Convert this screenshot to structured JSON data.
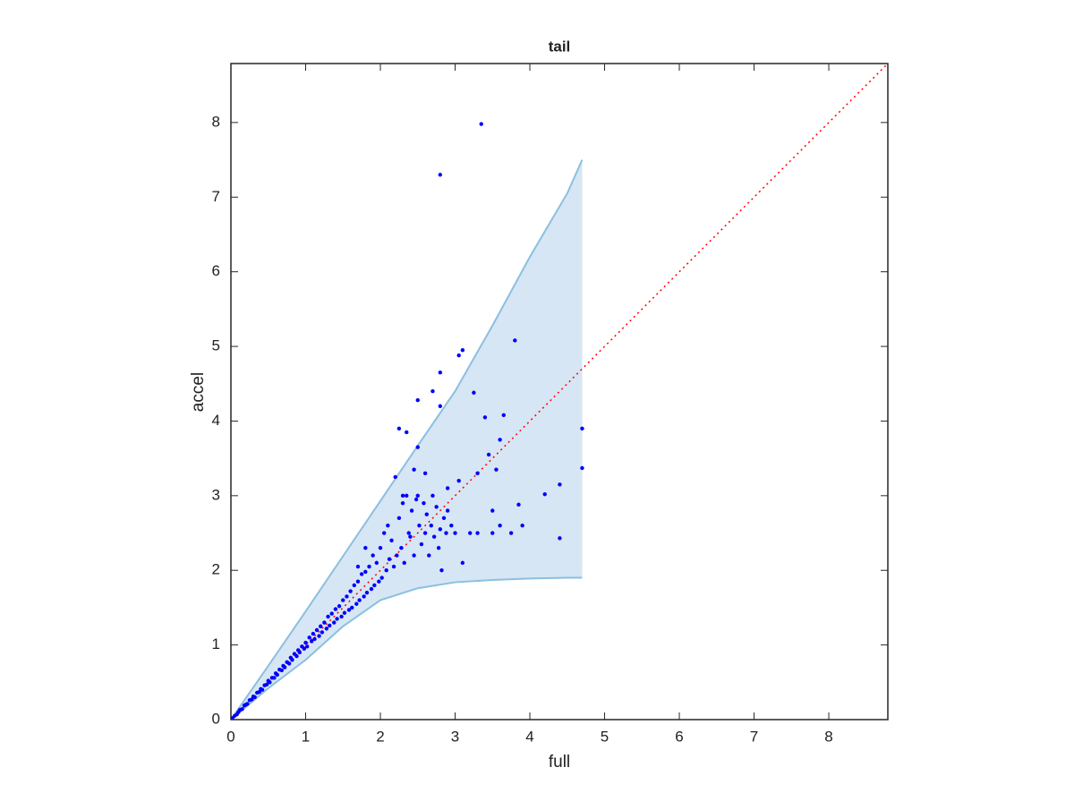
{
  "chart_data": {
    "type": "scatter",
    "title": "tail",
    "x_label": "full",
    "y_label": "accel",
    "xlim": [
      0,
      8.79
    ],
    "ylim": [
      0,
      8.79
    ],
    "xticks": [
      0,
      1,
      2,
      3,
      4,
      5,
      6,
      7,
      8
    ],
    "yticks": [
      0,
      1,
      2,
      3,
      4,
      5,
      6,
      7,
      8
    ],
    "color": "#0000ff",
    "x": [
      0.02,
      0.05,
      0.08,
      0.1,
      0.12,
      0.15,
      0.18,
      0.2,
      0.22,
      0.25,
      0.28,
      0.3,
      0.32,
      0.35,
      0.38,
      0.4,
      0.42,
      0.45,
      0.48,
      0.5,
      0.52,
      0.55,
      0.58,
      0.6,
      0.62,
      0.65,
      0.68,
      0.7,
      0.72,
      0.75,
      0.78,
      0.8,
      0.82,
      0.85,
      0.88,
      0.9,
      0.92,
      0.95,
      0.98,
      1.0,
      1.02,
      1.05,
      1.08,
      1.1,
      1.12,
      1.15,
      1.18,
      1.2,
      1.22,
      1.25,
      1.28,
      1.3,
      1.32,
      1.35,
      1.38,
      1.4,
      1.42,
      1.45,
      1.48,
      1.5,
      1.52,
      1.55,
      1.58,
      1.6,
      1.62,
      1.65,
      1.68,
      1.7,
      1.72,
      1.75,
      1.78,
      1.8,
      1.82,
      1.85,
      1.88,
      1.9,
      1.92,
      1.95,
      1.98,
      1.7,
      1.8,
      2.0,
      2.02,
      2.05,
      2.08,
      2.1,
      2.12,
      2.15,
      2.18,
      2.2,
      2.22,
      2.25,
      2.28,
      2.3,
      2.32,
      2.35,
      2.38,
      2.4,
      2.42,
      2.45,
      2.48,
      2.5,
      2.52,
      2.55,
      2.58,
      2.6,
      2.62,
      2.65,
      2.68,
      2.7,
      2.72,
      2.75,
      2.78,
      2.8,
      2.82,
      2.85,
      2.88,
      2.9,
      2.95,
      3.0,
      3.05,
      2.3,
      2.45,
      2.6,
      2.9,
      3.35,
      2.8,
      3.8,
      3.1,
      3.05,
      2.8,
      2.7,
      2.5,
      2.8,
      3.25,
      3.4,
      3.65,
      2.35,
      2.25,
      2.5,
      4.7,
      4.7,
      4.4,
      4.2,
      4.4,
      3.85,
      3.9,
      3.75,
      3.5,
      3.6,
      3.55,
      3.3,
      3.45,
      3.1,
      3.2,
      3.3,
      3.6,
      3.5
    ],
    "y": [
      0.02,
      0.05,
      0.07,
      0.1,
      0.13,
      0.14,
      0.19,
      0.2,
      0.21,
      0.26,
      0.27,
      0.31,
      0.3,
      0.36,
      0.37,
      0.41,
      0.4,
      0.46,
      0.47,
      0.52,
      0.5,
      0.56,
      0.56,
      0.62,
      0.6,
      0.67,
      0.66,
      0.72,
      0.7,
      0.77,
      0.75,
      0.83,
      0.8,
      0.88,
      0.85,
      0.93,
      0.9,
      0.98,
      0.95,
      1.03,
      0.98,
      1.1,
      1.05,
      1.15,
      1.08,
      1.2,
      1.12,
      1.25,
      1.17,
      1.3,
      1.22,
      1.38,
      1.26,
      1.42,
      1.3,
      1.48,
      1.35,
      1.52,
      1.38,
      1.6,
      1.43,
      1.65,
      1.47,
      1.72,
      1.5,
      1.8,
      1.55,
      1.85,
      1.6,
      1.95,
      1.65,
      1.98,
      1.7,
      2.05,
      1.75,
      2.2,
      1.8,
      2.1,
      1.85,
      2.05,
      2.3,
      2.3,
      1.9,
      2.5,
      2.0,
      2.6,
      2.15,
      2.4,
      2.05,
      3.25,
      2.2,
      2.7,
      2.3,
      2.9,
      2.1,
      3.0,
      2.5,
      2.45,
      2.8,
      2.2,
      2.95,
      3.0,
      2.6,
      2.35,
      2.9,
      2.5,
      2.75,
      2.2,
      2.6,
      3.0,
      2.45,
      2.85,
      2.3,
      2.55,
      2.0,
      2.7,
      2.5,
      2.8,
      2.6,
      2.5,
      3.2,
      3.0,
      3.35,
      3.3,
      3.1,
      7.98,
      7.3,
      5.08,
      4.95,
      4.88,
      4.65,
      4.4,
      4.28,
      4.2,
      4.38,
      4.05,
      4.08,
      3.85,
      3.9,
      3.65,
      3.9,
      3.37,
      3.15,
      3.02,
      2.43,
      2.88,
      2.6,
      2.5,
      2.5,
      3.75,
      3.35,
      3.3,
      3.55,
      2.1,
      2.5,
      2.5,
      2.6,
      2.8
    ],
    "band": {
      "color": "#d6e6f4",
      "edge_color": "#8cbfe0",
      "x": [
        0,
        0.5,
        1,
        1.5,
        2,
        2.5,
        3,
        3.5,
        4,
        4.5,
        4.7
      ],
      "upper": [
        0,
        0.72,
        1.45,
        2.19,
        2.93,
        3.67,
        4.4,
        5.28,
        6.2,
        7.05,
        7.5
      ],
      "lower": [
        0,
        0.42,
        0.8,
        1.25,
        1.6,
        1.76,
        1.84,
        1.87,
        1.89,
        1.9,
        1.9
      ]
    },
    "reference_line": {
      "color": "#ff0000",
      "x": [
        0,
        8.79
      ],
      "y": [
        0,
        8.79
      ]
    }
  }
}
